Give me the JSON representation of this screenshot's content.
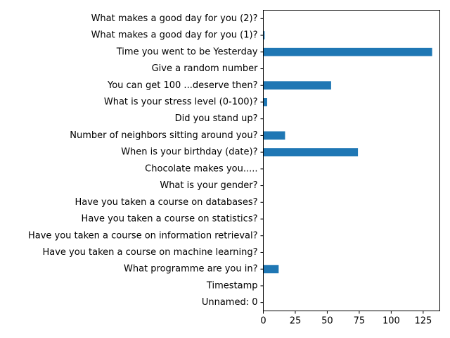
{
  "chart_data": {
    "type": "bar",
    "orientation": "horizontal",
    "categories": [
      "Unnamed: 0",
      "Timestamp",
      "What programme are you in?",
      "Have you taken a course on machine learning?",
      "Have you taken a course on information retrieval?",
      "Have you taken a course on statistics?",
      "Have you taken a course on databases?",
      "What is your gender?",
      "Chocolate makes you.....",
      "When is your birthday (date)?",
      "Number of neighbors sitting around you?",
      "Did you stand up?",
      "What is your stress level (0-100)?",
      "You can get 100 ...deserve then? ",
      "Give a random number",
      "Time you went to be Yesterday",
      "What makes a good day for you (1)?",
      "What makes a good day for you (2)?"
    ],
    "values": [
      0,
      0,
      12,
      0,
      0,
      0,
      0,
      0,
      0,
      74,
      17,
      0,
      3,
      53,
      0,
      132,
      1,
      0
    ],
    "xticks": [
      0,
      25,
      50,
      75,
      100,
      125
    ],
    "xlim": [
      0,
      138
    ],
    "bar_color": "#1f77b4",
    "grid": false,
    "title": "",
    "xlabel": "",
    "ylabel": ""
  }
}
